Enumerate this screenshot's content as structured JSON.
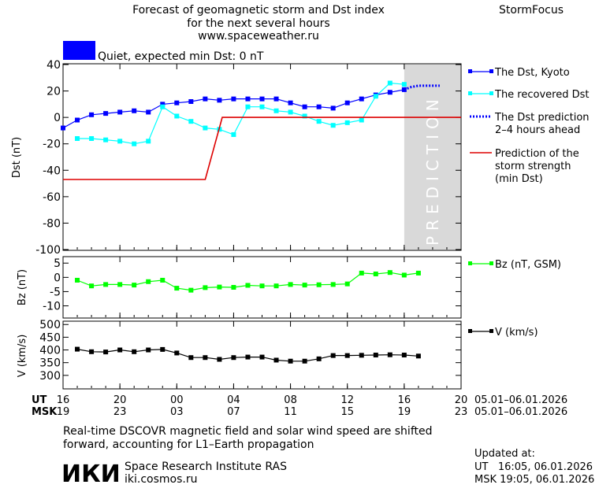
{
  "header": {
    "title_line1": "Forecast of geomagnetic storm and Dst index",
    "title_line2": "for the next several hours",
    "site": "www.spaceweather.ru",
    "brand": "StormFocus"
  },
  "status": {
    "label": "Quiet, expected min Dst: 0 nT",
    "color": "#0000ff"
  },
  "prediction_label": "PREDICTION",
  "time_axis": {
    "ut_label": "UT",
    "msk_label": "MSK",
    "ut_ticks": [
      "16",
      "20",
      "00",
      "04",
      "08",
      "12",
      "16",
      "20"
    ],
    "msk_ticks": [
      "19",
      "23",
      "03",
      "07",
      "11",
      "15",
      "19",
      "23"
    ],
    "ut_dates": "05.01–06.01.2026",
    "msk_dates": "05.01–06.01.2026",
    "range_hours": [
      16,
      44
    ],
    "prediction_start_hour": 40
  },
  "chart_data": [
    {
      "type": "line",
      "ylabel": "Dst (nT)",
      "ylim": [
        -100,
        40
      ],
      "yticks": [
        40,
        20,
        0,
        -20,
        -40,
        -60,
        -80,
        -100
      ],
      "series": [
        {
          "name": "The Dst, Kyoto",
          "color": "#0000ff",
          "marker": "square",
          "x": [
            16,
            17,
            18,
            19,
            20,
            21,
            22,
            23,
            24,
            25,
            26,
            27,
            28,
            29,
            30,
            31,
            32,
            33,
            34,
            35,
            36,
            37,
            38,
            39,
            40
          ],
          "y": [
            -8,
            -2,
            2,
            3,
            4,
            5,
            4,
            10,
            11,
            12,
            14,
            13,
            14,
            14,
            14,
            14,
            11,
            8,
            8,
            7,
            11,
            14,
            17,
            19,
            21
          ]
        },
        {
          "name": "The recovered Dst",
          "color": "#00ffff",
          "marker": "square",
          "x": [
            17,
            18,
            19,
            20,
            21,
            22,
            23,
            24,
            25,
            26,
            27,
            28,
            29,
            30,
            31,
            32,
            33,
            34,
            35,
            36,
            37,
            38,
            39,
            40
          ],
          "y": [
            -16,
            -16,
            -17,
            -18,
            -20,
            -18,
            8,
            1,
            -3,
            -8,
            -9,
            -13,
            8,
            8,
            5,
            4,
            1,
            -3,
            -6,
            -4,
            -2,
            16,
            26,
            25
          ]
        },
        {
          "name": "The Dst prediction 2–4 hours ahead",
          "legend_lines": [
            "The Dst prediction",
            "2–4 hours ahead"
          ],
          "color": "#0000ff",
          "style": "dotted",
          "x": [
            40,
            40.5,
            41,
            41.5,
            42,
            42.5
          ],
          "y": [
            21,
            23,
            24,
            24,
            24,
            24
          ]
        },
        {
          "name": "Prediction of the storm strength (min Dst)",
          "legend_lines": [
            "Prediction of the",
            "storm strength",
            "(min Dst)"
          ],
          "color": "#dd0000",
          "style": "step",
          "x": [
            16,
            26,
            27.2,
            44
          ],
          "y": [
            -47,
            -47,
            0,
            0
          ]
        }
      ]
    },
    {
      "type": "line",
      "ylabel": "Bz (nT)",
      "ylim": [
        -14,
        7
      ],
      "yticks": [
        5,
        0,
        -5,
        -10
      ],
      "series": [
        {
          "name": "Bz (nT, GSM)",
          "color": "#00ff00",
          "marker": "square",
          "x": [
            17,
            18,
            19,
            20,
            21,
            22,
            23,
            24,
            25,
            26,
            27,
            28,
            29,
            30,
            31,
            32,
            33,
            34,
            35,
            36,
            37,
            38,
            39,
            40,
            41
          ],
          "y": [
            -1,
            -3,
            -2.5,
            -2.5,
            -2.7,
            -1.5,
            -1,
            -3.8,
            -4.5,
            -3.6,
            -3.4,
            -3.5,
            -2.8,
            -3,
            -3,
            -2.5,
            -2.7,
            -2.6,
            -2.5,
            -2.3,
            1.5,
            1.2,
            1.7,
            0.8,
            1.5
          ]
        }
      ]
    },
    {
      "type": "line",
      "ylabel": "V (km/s)",
      "ylim": [
        250,
        510
      ],
      "yticks": [
        500,
        450,
        400,
        350,
        300
      ],
      "series": [
        {
          "name": "V (km/s)",
          "color": "#000000",
          "marker": "square",
          "x": [
            17,
            18,
            19,
            20,
            21,
            22,
            23,
            24,
            25,
            26,
            27,
            28,
            29,
            30,
            31,
            32,
            33,
            34,
            35,
            36,
            37,
            38,
            39,
            40,
            41
          ],
          "y": [
            403,
            393,
            392,
            400,
            393,
            400,
            402,
            388,
            370,
            370,
            363,
            370,
            372,
            372,
            360,
            356,
            356,
            365,
            378,
            378,
            379,
            380,
            381,
            380,
            376
          ]
        }
      ]
    }
  ],
  "footer": {
    "note_line1": "Real-time DSCOVR magnetic field and solar wind speed are shifted",
    "note_line2": "forward, accounting for L1–Earth propagation",
    "institute": "Space Research Institute RAS",
    "site": "iki.cosmos.ru",
    "logo_text": "ИКИ",
    "updated_label": "Updated at:",
    "updated_ut": "UT   16:05, 06.01.2026",
    "updated_msk": "MSK 19:05, 06.01.2026"
  }
}
